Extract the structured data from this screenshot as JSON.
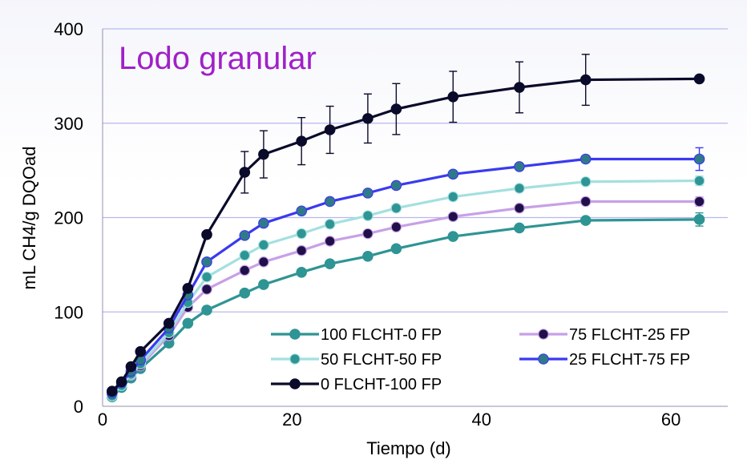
{
  "chart_data": {
    "type": "line",
    "title": "Lodo granular",
    "title_color": "#a020c8",
    "xlabel": "Tiempo (d)",
    "ylabel": "mL CH4/g DQOad",
    "xlim": [
      0,
      66
    ],
    "ylim": [
      0,
      400
    ],
    "xticks": [
      "0",
      "20",
      "40",
      "60"
    ],
    "yticks": [
      "0",
      "100",
      "200",
      "300",
      "400"
    ],
    "grid": true,
    "legend_position": "bottom-right",
    "x": [
      1,
      2,
      3,
      4,
      7,
      9,
      11,
      15,
      17,
      21,
      24,
      28,
      31,
      37,
      44,
      51,
      63
    ],
    "series": [
      {
        "name": "100 FLCHT-0 FP",
        "line_color": "#2f9494",
        "marker_color": "#2f9494",
        "values": [
          10,
          20,
          30,
          40,
          67,
          88,
          102,
          120,
          129,
          142,
          151,
          159,
          167,
          180,
          189,
          197,
          198
        ],
        "errors": [
          0,
          0,
          0,
          0,
          0,
          0,
          0,
          0,
          0,
          0,
          0,
          0,
          0,
          0,
          0,
          0,
          7
        ]
      },
      {
        "name": "75 FLCHT-25 FP",
        "line_color": "#c8a0e6",
        "marker_color": "#20104a",
        "values": [
          12,
          23,
          33,
          43,
          75,
          105,
          124,
          144,
          153,
          165,
          175,
          183,
          190,
          201,
          210,
          217,
          217
        ],
        "errors": [
          0,
          0,
          0,
          0,
          0,
          0,
          0,
          0,
          0,
          0,
          0,
          0,
          0,
          0,
          0,
          0,
          5
        ]
      },
      {
        "name": "50 FLCHT-50 FP",
        "line_color": "#a4e0e0",
        "marker_color": "#2f9494",
        "values": [
          11,
          22,
          34,
          45,
          78,
          110,
          137,
          160,
          171,
          183,
          193,
          202,
          210,
          222,
          231,
          238,
          239
        ],
        "errors": [
          0,
          0,
          0,
          0,
          0,
          0,
          0,
          0,
          0,
          0,
          0,
          0,
          0,
          0,
          0,
          0,
          5
        ]
      },
      {
        "name": "25 FLCHT-75 FP",
        "line_color": "#3a3af0",
        "marker_color": "#2f7a88",
        "values": [
          14,
          25,
          37,
          49,
          83,
          118,
          153,
          181,
          194,
          207,
          217,
          226,
          234,
          246,
          254,
          262,
          262
        ],
        "errors": [
          0,
          0,
          0,
          0,
          0,
          0,
          0,
          0,
          0,
          0,
          0,
          0,
          0,
          0,
          0,
          0,
          12
        ]
      },
      {
        "name": "0 FLCHT-100 FP",
        "line_color": "#0a0a2a",
        "marker_color": "#0a0a2a",
        "values": [
          16,
          26,
          42,
          58,
          88,
          125,
          182,
          248,
          267,
          281,
          293,
          305,
          315,
          328,
          338,
          346,
          347
        ],
        "errors": [
          0,
          0,
          0,
          0,
          0,
          0,
          0,
          22,
          25,
          25,
          25,
          26,
          27,
          27,
          27,
          27,
          0
        ]
      }
    ]
  }
}
